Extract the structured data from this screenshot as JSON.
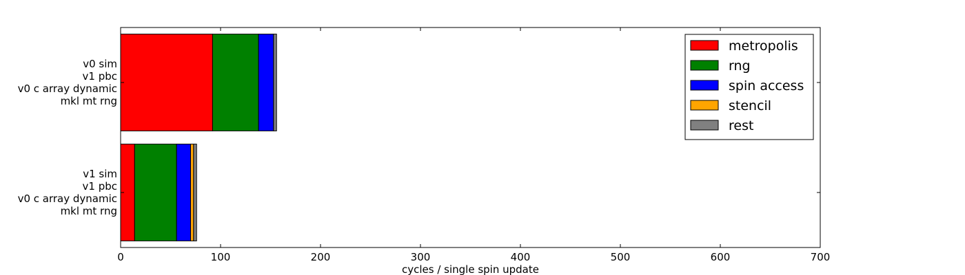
{
  "chart_data": {
    "type": "bar",
    "orientation": "horizontal",
    "stacked": true,
    "title": "",
    "xlabel": "cycles / single spin update",
    "ylabel": "",
    "xlim": [
      0,
      700
    ],
    "xticks": [
      "0",
      "100",
      "200",
      "300",
      "400",
      "500",
      "600",
      "700"
    ],
    "grid": false,
    "legend_position": "top-right",
    "categories": [
      [
        "v1 sim",
        "v1 pbc",
        "v0 c array dynamic",
        "mkl mt rng"
      ],
      [
        "v0 sim",
        "v1 pbc",
        "v0 c array dynamic",
        "mkl mt rng"
      ]
    ],
    "series": [
      {
        "name": "metropolis",
        "color": "#ff0000",
        "values": [
          14,
          92
        ]
      },
      {
        "name": "rng",
        "color": "#008000",
        "values": [
          42,
          46
        ]
      },
      {
        "name": "spin access",
        "color": "#0000ff",
        "values": [
          14,
          15
        ]
      },
      {
        "name": "stencil",
        "color": "#ffa500",
        "values": [
          3,
          0
        ]
      },
      {
        "name": "rest",
        "color": "#808080",
        "values": [
          3,
          3
        ]
      }
    ]
  }
}
